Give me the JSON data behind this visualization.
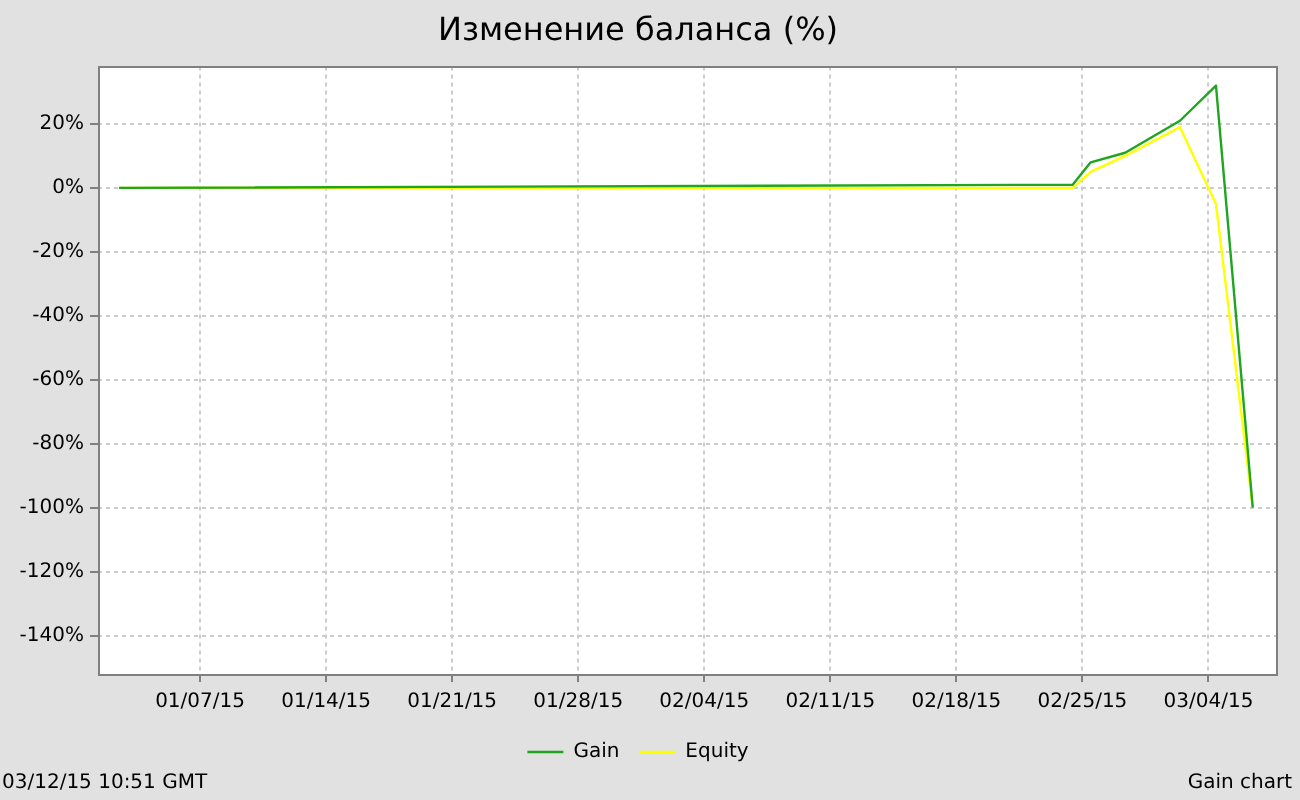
{
  "chart_data": {
    "type": "line",
    "title": "Изменение баланса (%)",
    "x": [
      "--01-02T12:00",
      "--02-24T11:00",
      "--02-25T11:00",
      "--02-27T09:00",
      "--03-02T10:00",
      "--03-04T10:00",
      "--03-06T11:00"
    ],
    "series": [
      {
        "name": "Gain",
        "color": "#1fa51f",
        "values": [
          0,
          1,
          8,
          11,
          21,
          32,
          -100
        ]
      },
      {
        "name": "Equity",
        "color": "#ffff00",
        "values": [
          0,
          0,
          5,
          10,
          19,
          -5,
          -100
        ]
      }
    ],
    "xlim": [
      "--01-01T08:00",
      "--03-07T18:00"
    ],
    "xticks": [
      {
        "value": "--01-07",
        "label": "01/07/15"
      },
      {
        "value": "--01-14",
        "label": "01/14/15"
      },
      {
        "value": "--01-21",
        "label": "01/21/15"
      },
      {
        "value": "--01-28",
        "label": "01/28/15"
      },
      {
        "value": "--02-04",
        "label": "02/04/15"
      },
      {
        "value": "--02-11",
        "label": "02/11/15"
      },
      {
        "value": "--02-18",
        "label": "02/18/15"
      },
      {
        "value": "--02-25",
        "label": "02/25/15"
      },
      {
        "value": "--03-04",
        "label": "03/04/15"
      }
    ],
    "ylim": [
      -152,
      38
    ],
    "yticks": [
      {
        "value": 20,
        "label": "20%"
      },
      {
        "value": 0,
        "label": "0%"
      },
      {
        "value": -20,
        "label": "-20%"
      },
      {
        "value": -40,
        "label": "-40%"
      },
      {
        "value": -60,
        "label": "-60%"
      },
      {
        "value": -80,
        "label": "-80%"
      },
      {
        "value": -100,
        "label": "-100%"
      },
      {
        "value": -120,
        "label": "-120%"
      },
      {
        "value": -140,
        "label": "-140%"
      }
    ],
    "grid": true,
    "legend": "bottom",
    "marker": "none",
    "annotations": [
      "03/12/15 10:51 GMT",
      "Gain chart"
    ]
  }
}
